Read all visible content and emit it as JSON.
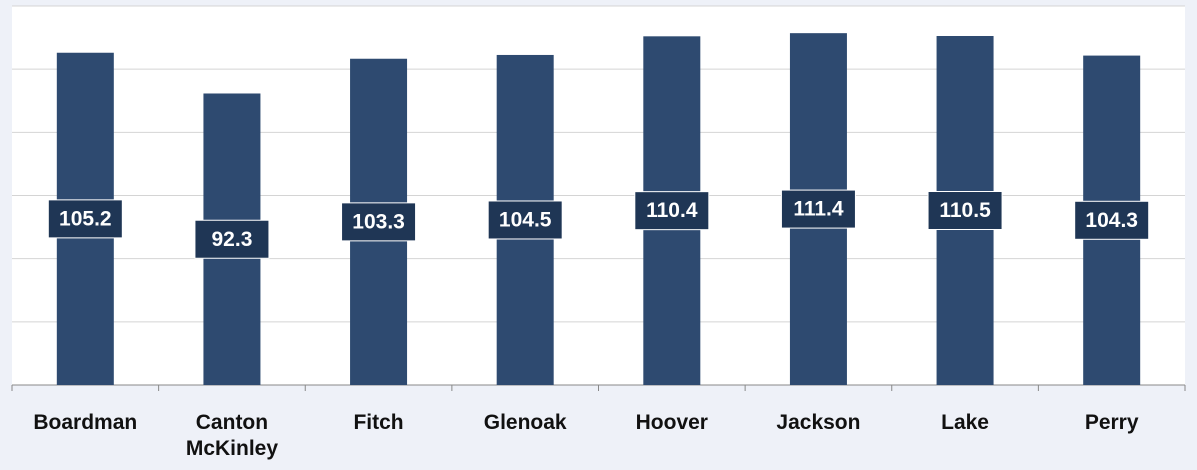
{
  "chart_data": {
    "type": "bar",
    "categories": [
      "Boardman",
      "Canton McKinley",
      "Fitch",
      "Glenoak",
      "Hoover",
      "Jackson",
      "Lake",
      "Perry"
    ],
    "values": [
      105.2,
      92.3,
      103.3,
      104.5,
      110.4,
      111.4,
      110.5,
      104.3
    ],
    "color": "#2e4a70",
    "ylim": [
      0,
      120
    ],
    "yticks": [
      0,
      20,
      40,
      60,
      80,
      100,
      120
    ],
    "grid": true
  }
}
